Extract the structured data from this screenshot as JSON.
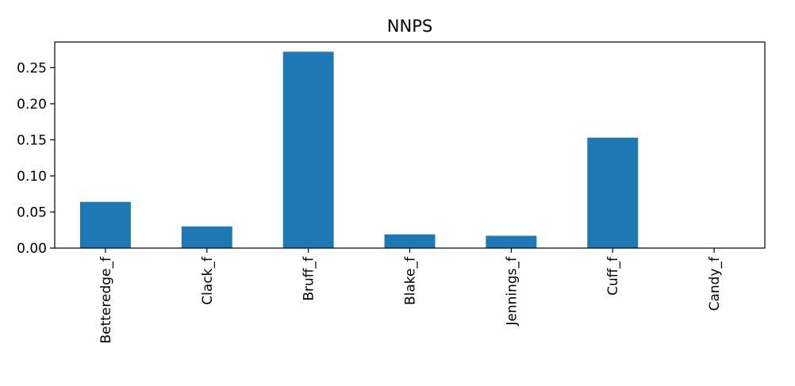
{
  "chart_data": {
    "type": "bar",
    "title": "NNPS",
    "xlabel": "",
    "ylabel": "",
    "categories": [
      "Betteredge_f",
      "Clack_f",
      "Bruff_f",
      "Blake_f",
      "Jennings_f",
      "Cuff_f",
      "Candy_f"
    ],
    "values": [
      0.064,
      0.03,
      0.272,
      0.019,
      0.017,
      0.153,
      0.0
    ],
    "ylim": [
      0,
      0.2855
    ],
    "yticks": [
      "0.00",
      "0.05",
      "0.10",
      "0.15",
      "0.20",
      "0.25"
    ],
    "ytick_values": [
      0,
      0.05,
      0.1,
      0.15,
      0.2,
      0.25
    ],
    "grid": false,
    "legend": "none",
    "bar_color": "#1f77b4"
  }
}
